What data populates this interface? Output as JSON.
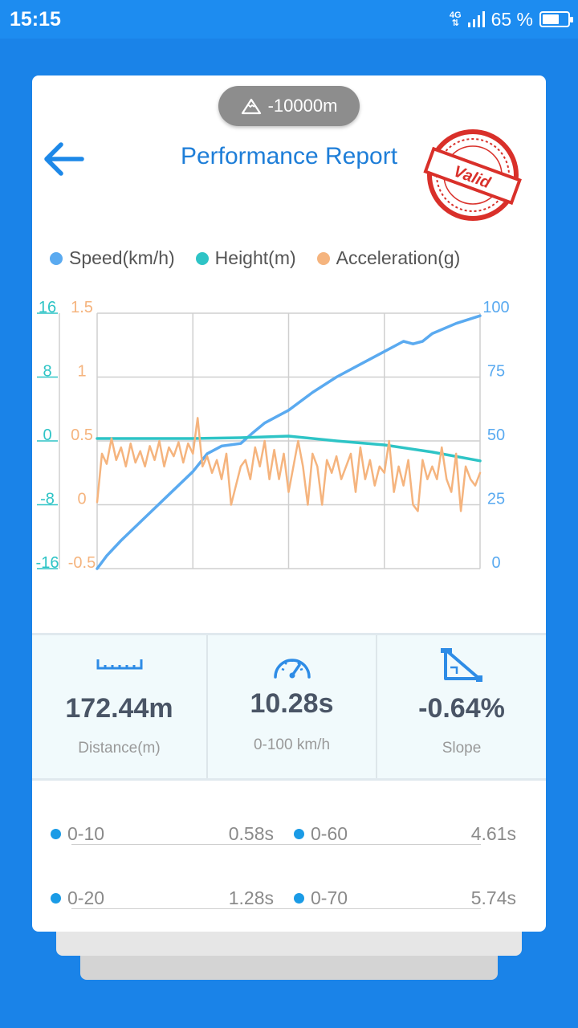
{
  "status_bar": {
    "time": "15:15",
    "network": "4G",
    "battery": "65 %",
    "battery_level": 0.65
  },
  "header": {
    "altitude": "-10000m",
    "title": "Performance Report",
    "stamp_text": "Valid"
  },
  "chart_data": {
    "type": "line",
    "legend": [
      "Speed(km/h)",
      "Height(m)",
      "Acceleration(g)"
    ],
    "y_axes": {
      "height": {
        "ticks": [
          "16",
          "8",
          "0",
          "-8",
          "-16"
        ],
        "range": [
          -16,
          16
        ],
        "color": "#2ec4c6"
      },
      "acceleration": {
        "ticks": [
          "1.5",
          "1",
          "0.5",
          "0",
          "-0.5"
        ],
        "range": [
          -0.5,
          1.5
        ],
        "color": "#f5b47e"
      },
      "speed": {
        "ticks": [
          "100",
          "75",
          "50",
          "25",
          "0"
        ],
        "range": [
          0,
          100
        ],
        "color": "#5aaaf0"
      }
    },
    "x_range": [
      0,
      4
    ],
    "grid": true,
    "legend_position": "top",
    "series": [
      {
        "name": "Speed(km/h)",
        "color": "#5aaaf0",
        "axis": "speed",
        "x": [
          0,
          0.1,
          0.25,
          0.5,
          0.75,
          1.0,
          1.15,
          1.3,
          1.5,
          1.62,
          1.75,
          2.0,
          2.25,
          2.5,
          2.75,
          3.0,
          3.2,
          3.3,
          3.4,
          3.5,
          3.75,
          4.0
        ],
        "values": [
          0,
          5,
          11,
          20,
          29,
          38,
          45,
          48,
          49,
          53,
          57,
          62,
          69,
          75,
          80,
          85,
          89,
          88,
          89,
          92,
          96,
          99
        ]
      },
      {
        "name": "Height(m)",
        "color": "#2ec4c6",
        "axis": "height",
        "x": [
          0,
          0.5,
          1.0,
          1.5,
          2.0,
          2.5,
          3.0,
          3.5,
          4.0
        ],
        "values": [
          0.3,
          0.3,
          0.3,
          0.4,
          0.6,
          0.0,
          -0.5,
          -1.4,
          -2.5
        ]
      },
      {
        "name": "Acceleration(g)",
        "color": "#f5b47e",
        "axis": "acceleration",
        "x": [
          0,
          0.05,
          0.1,
          0.15,
          0.2,
          0.25,
          0.3,
          0.35,
          0.4,
          0.45,
          0.5,
          0.55,
          0.6,
          0.65,
          0.7,
          0.75,
          0.8,
          0.85,
          0.9,
          0.95,
          1.0,
          1.05,
          1.1,
          1.15,
          1.2,
          1.25,
          1.3,
          1.35,
          1.4,
          1.45,
          1.5,
          1.55,
          1.6,
          1.65,
          1.7,
          1.75,
          1.8,
          1.85,
          1.9,
          1.95,
          2.0,
          2.05,
          2.1,
          2.15,
          2.2,
          2.25,
          2.3,
          2.35,
          2.4,
          2.45,
          2.5,
          2.55,
          2.6,
          2.65,
          2.7,
          2.75,
          2.8,
          2.85,
          2.9,
          2.95,
          3.0,
          3.05,
          3.1,
          3.15,
          3.2,
          3.25,
          3.3,
          3.35,
          3.4,
          3.45,
          3.5,
          3.55,
          3.6,
          3.65,
          3.7,
          3.75,
          3.8,
          3.85,
          3.9,
          3.95,
          4.0
        ],
        "values": [
          0.02,
          0.4,
          0.32,
          0.52,
          0.35,
          0.45,
          0.3,
          0.48,
          0.33,
          0.42,
          0.3,
          0.46,
          0.35,
          0.5,
          0.3,
          0.45,
          0.38,
          0.49,
          0.33,
          0.48,
          0.4,
          0.68,
          0.3,
          0.38,
          0.25,
          0.35,
          0.2,
          0.4,
          0.0,
          0.15,
          0.3,
          0.35,
          0.2,
          0.45,
          0.3,
          0.5,
          0.2,
          0.43,
          0.2,
          0.4,
          0.1,
          0.3,
          0.5,
          0.3,
          0.0,
          0.4,
          0.3,
          0.0,
          0.35,
          0.25,
          0.38,
          0.2,
          0.3,
          0.4,
          0.1,
          0.45,
          0.2,
          0.35,
          0.15,
          0.3,
          0.25,
          0.5,
          0.1,
          0.3,
          0.15,
          0.35,
          0.0,
          -0.05,
          0.35,
          0.2,
          0.3,
          0.2,
          0.45,
          0.2,
          0.1,
          0.4,
          -0.05,
          0.3,
          0.2,
          0.15,
          0.25
        ]
      }
    ]
  },
  "stats": [
    {
      "icon": "ruler-icon",
      "value": "172.44m",
      "label": "Distance(m)"
    },
    {
      "icon": "speedometer-icon",
      "value": "10.28s",
      "label": "0-100 km/h"
    },
    {
      "icon": "slope-icon",
      "value": "-0.64%",
      "label": "Slope"
    }
  ],
  "times": [
    [
      {
        "label": "0-10",
        "value": "0.58s"
      },
      {
        "label": "0-60",
        "value": "4.61s"
      }
    ],
    [
      {
        "label": "0-20",
        "value": "1.28s"
      },
      {
        "label": "0-70",
        "value": "5.74s"
      }
    ]
  ],
  "colors": {
    "primary": "#1d8cf0",
    "title": "#1e7ed8",
    "speed": "#5aaaf0",
    "height": "#2ec4c6",
    "acceleration": "#f5b47e",
    "stamp": "#d9302a"
  }
}
